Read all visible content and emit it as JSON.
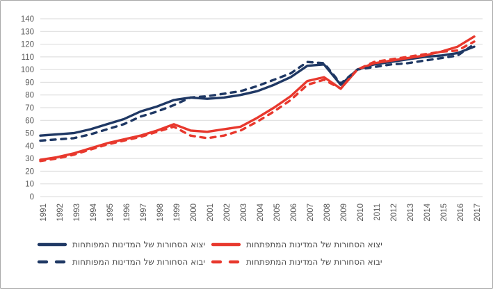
{
  "colors": {
    "navy": "#1f3864",
    "red": "#e8382d",
    "gridline": "#d9d9d9",
    "axis_text": "#595959",
    "legend_text": "#4a4a4a",
    "frame_border": "#a8a8a8",
    "background": "#ffffff"
  },
  "chart_data": {
    "type": "line",
    "title": "",
    "xlabel": "",
    "ylabel": "",
    "ylim": [
      0,
      140
    ],
    "ytick_step": 10,
    "grid": true,
    "legend_position": "bottom",
    "x": [
      "1991",
      "1992",
      "1993",
      "1994",
      "1995",
      "1996",
      "1997",
      "1998",
      "1999",
      "2000",
      "2001",
      "2002",
      "2003",
      "2004",
      "2005",
      "2006",
      "2007",
      "2008",
      "2009",
      "2010",
      "2011",
      "2012",
      "2013",
      "2014",
      "2015",
      "2016",
      "2017"
    ],
    "series": [
      {
        "key": "developed-exports",
        "name": "יצוא הסחורות של המדינות המפותחות",
        "color": "#1f3864",
        "dash": false,
        "values": [
          48,
          49,
          50,
          53,
          57,
          61,
          67,
          71,
          76,
          78,
          77,
          78,
          80,
          83,
          88,
          94,
          103,
          104,
          88,
          100,
          104,
          106,
          108,
          110,
          111,
          113,
          118
        ]
      },
      {
        "key": "developing-exports",
        "name": "יצוא הסחורות של המדינות המתפתחות",
        "color": "#e8382d",
        "dash": false,
        "values": [
          29,
          31,
          34,
          38,
          42,
          45,
          48,
          52,
          57,
          52,
          51,
          53,
          55,
          62,
          70,
          79,
          91,
          94,
          85,
          100,
          105,
          107,
          109,
          111,
          114,
          118,
          126
        ]
      },
      {
        "key": "developed-imports",
        "name": "יבוא הסחורות של המדינות המפותחות",
        "color": "#1f3864",
        "dash": true,
        "values": [
          44,
          45,
          46,
          49,
          53,
          57,
          63,
          67,
          72,
          78,
          79,
          81,
          83,
          87,
          92,
          97,
          106,
          105,
          89,
          100,
          102,
          104,
          105,
          107,
          109,
          111,
          120
        ]
      },
      {
        "key": "developing-imports",
        "name": "יבוא הסחורות של המדינות המתפתחות",
        "color": "#e8382d",
        "dash": true,
        "values": [
          28,
          30,
          33,
          37,
          41,
          44,
          47,
          51,
          55,
          48,
          46,
          48,
          52,
          59,
          67,
          76,
          88,
          92,
          85,
          100,
          106,
          108,
          110,
          112,
          114,
          115,
          122
        ]
      }
    ]
  }
}
